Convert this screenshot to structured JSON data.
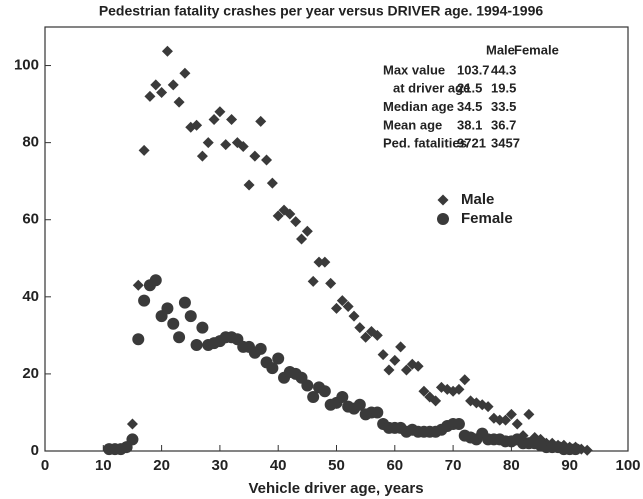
{
  "chart_data": {
    "type": "scatter",
    "title": "Pedestrian fatality crashes per year versus DRIVER age.  1994-1996",
    "x_label": "Vehicle driver age, years",
    "xlim": [
      0,
      100
    ],
    "xticks": [
      0,
      10,
      20,
      30,
      40,
      50,
      60,
      70,
      80,
      90,
      100
    ],
    "ylim": [
      0,
      110
    ],
    "yticks": [
      0,
      20,
      40,
      60,
      80,
      100
    ],
    "legend": "upper right",
    "series": [
      {
        "name": "Male",
        "color": "#3a3a3a",
        "marker": "diamond",
        "x": [
          11,
          12,
          13,
          14,
          15,
          16,
          17,
          18,
          19,
          20,
          21,
          22,
          23,
          24,
          25,
          26,
          27,
          28,
          29,
          30,
          31,
          32,
          33,
          34,
          35,
          36,
          37,
          38,
          39,
          40,
          41,
          42,
          43,
          44,
          45,
          46,
          47,
          48,
          49,
          50,
          51,
          52,
          53,
          54,
          55,
          56,
          57,
          58,
          59,
          60,
          61,
          62,
          63,
          64,
          65,
          66,
          67,
          68,
          69,
          70,
          71,
          72,
          73,
          74,
          75,
          76,
          77,
          78,
          79,
          80,
          81,
          82,
          83,
          84,
          85,
          86,
          87,
          88,
          89,
          90,
          91,
          92,
          93
        ],
        "values": [
          0.5,
          0.5,
          0.5,
          1,
          7,
          43,
          78,
          92,
          95,
          93,
          103.7,
          95,
          90.5,
          98,
          84,
          84.5,
          76.5,
          80,
          86,
          88,
          79.5,
          86,
          80,
          79,
          69,
          76.5,
          85.5,
          75.5,
          69.5,
          61,
          62.5,
          61.5,
          59.5,
          55,
          57,
          44,
          49,
          49,
          43.5,
          37,
          39,
          37.5,
          35,
          32,
          29.5,
          31,
          30,
          25,
          21,
          23.5,
          27,
          21,
          22.5,
          22,
          15.5,
          14,
          13,
          16.5,
          16,
          15.5,
          16,
          18.5,
          13,
          12.5,
          12,
          11.5,
          8.5,
          8,
          8,
          9.5,
          7,
          4,
          9.5,
          3.5,
          3,
          2,
          2,
          1.5,
          1.5,
          1,
          1,
          0.5,
          0.2
        ]
      },
      {
        "name": "Female",
        "color": "#3a3a3a",
        "marker": "circle",
        "x": [
          11,
          12,
          13,
          14,
          15,
          16,
          17,
          18,
          19,
          20,
          21,
          22,
          23,
          24,
          25,
          26,
          27,
          28,
          29,
          30,
          31,
          32,
          33,
          34,
          35,
          36,
          37,
          38,
          39,
          40,
          41,
          42,
          43,
          44,
          45,
          46,
          47,
          48,
          49,
          50,
          51,
          52,
          53,
          54,
          55,
          56,
          57,
          58,
          59,
          60,
          61,
          62,
          63,
          64,
          65,
          66,
          67,
          68,
          69,
          70,
          71,
          72,
          73,
          74,
          75,
          76,
          77,
          78,
          79,
          80,
          81,
          82,
          83,
          84,
          85,
          86,
          87,
          88,
          89,
          90,
          91
        ],
        "values": [
          0.5,
          0.5,
          0.5,
          1,
          3,
          29,
          39,
          43,
          44.3,
          35,
          37,
          33,
          29.5,
          38.5,
          35,
          27.5,
          32,
          27.5,
          28,
          28.5,
          29.5,
          29.5,
          29,
          27,
          27,
          25.5,
          26.5,
          23,
          21.5,
          24,
          19,
          20.5,
          20,
          19,
          17,
          14,
          16.5,
          15.5,
          12,
          12.5,
          14,
          11.5,
          11,
          12,
          9.5,
          10,
          10,
          7,
          6,
          6,
          6,
          5,
          5.5,
          5,
          5,
          5,
          5,
          5.5,
          6.5,
          7,
          7,
          4,
          3.5,
          3,
          4.5,
          3,
          3,
          3,
          2.5,
          2.5,
          3,
          2,
          2,
          2,
          1.5,
          1,
          1,
          1,
          0.5,
          0.5,
          0.5
        ]
      }
    ],
    "stats_table": {
      "columns": [
        "Male",
        "Female"
      ],
      "rows": [
        {
          "label": "Max value",
          "values": [
            103.7,
            44.3
          ]
        },
        {
          "label": "at driver age",
          "values": [
            21.5,
            19.5
          ]
        },
        {
          "label": "Median age",
          "values": [
            34.5,
            33.5
          ]
        },
        {
          "label": "Mean age",
          "values": [
            38.1,
            36.7
          ]
        },
        {
          "label": "Ped. fatalities",
          "values": [
            9721,
            3457
          ]
        }
      ]
    }
  }
}
